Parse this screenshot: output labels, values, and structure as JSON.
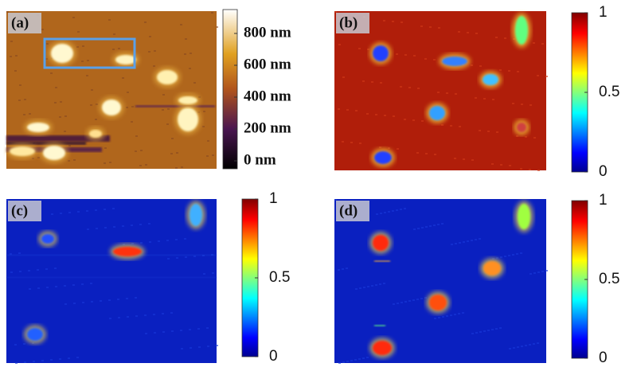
{
  "panels": [
    {
      "label": "(a)",
      "colorbar": [
        "800 nm",
        "600 nm",
        "400 nm",
        "200 nm",
        "0 nm"
      ]
    },
    {
      "label": "(b)",
      "colorbar": [
        1,
        0.5,
        0
      ]
    },
    {
      "label": "(c)",
      "colorbar": [
        1,
        0.5,
        0
      ]
    },
    {
      "label": "(d)",
      "colorbar": [
        1,
        0.5,
        0
      ]
    }
  ]
}
